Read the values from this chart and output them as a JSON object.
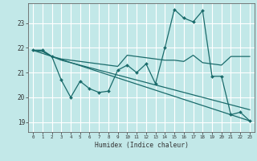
{
  "xlabel": "Humidex (Indice chaleur)",
  "bg_color": "#c2e8e8",
  "grid_color": "#ffffff",
  "line_color": "#1a6b6b",
  "xlim": [
    -0.5,
    23.5
  ],
  "ylim": [
    18.6,
    23.8
  ],
  "yticks": [
    19,
    20,
    21,
    22,
    23
  ],
  "xticks": [
    0,
    1,
    2,
    3,
    4,
    5,
    6,
    7,
    8,
    9,
    10,
    11,
    12,
    13,
    14,
    15,
    16,
    17,
    18,
    19,
    20,
    21,
    22,
    23
  ],
  "series_jagged": {
    "x": [
      0,
      1,
      2,
      3,
      4,
      5,
      6,
      7,
      8,
      9,
      10,
      11,
      12,
      13,
      14,
      15,
      16,
      17,
      18,
      19,
      20,
      21,
      22,
      23
    ],
    "y": [
      21.9,
      21.9,
      21.65,
      20.7,
      20.0,
      20.65,
      20.35,
      20.2,
      20.25,
      21.1,
      21.3,
      21.0,
      21.35,
      20.55,
      22.0,
      23.55,
      23.2,
      23.05,
      23.5,
      20.85,
      20.85,
      19.3,
      19.4,
      19.05
    ]
  },
  "series_flat_high": {
    "x": [
      0,
      1,
      2,
      3,
      4,
      5,
      6,
      7,
      8,
      9,
      10,
      11,
      12,
      13,
      14,
      15,
      16,
      17,
      18,
      19,
      20,
      21,
      22,
      23
    ],
    "y": [
      21.9,
      21.9,
      21.65,
      21.55,
      21.5,
      21.45,
      21.4,
      21.35,
      21.3,
      21.25,
      21.7,
      21.65,
      21.6,
      21.55,
      21.5,
      21.5,
      21.45,
      21.7,
      21.4,
      21.35,
      21.3,
      21.65,
      21.65,
      21.65
    ]
  },
  "series_declining": {
    "x": [
      0,
      1,
      2,
      3,
      4,
      5,
      6,
      7,
      8,
      9,
      10,
      11,
      12,
      13,
      14,
      15,
      16,
      17,
      18,
      19,
      20,
      21,
      22,
      23
    ],
    "y": [
      21.9,
      21.85,
      21.65,
      21.5,
      21.4,
      21.3,
      21.2,
      21.1,
      21.0,
      20.9,
      20.8,
      20.7,
      20.6,
      20.5,
      20.4,
      20.3,
      20.2,
      20.1,
      20.0,
      19.9,
      19.8,
      19.7,
      19.6,
      19.5
    ]
  },
  "series_straight": {
    "x": [
      0,
      23
    ],
    "y": [
      21.9,
      19.05
    ]
  }
}
